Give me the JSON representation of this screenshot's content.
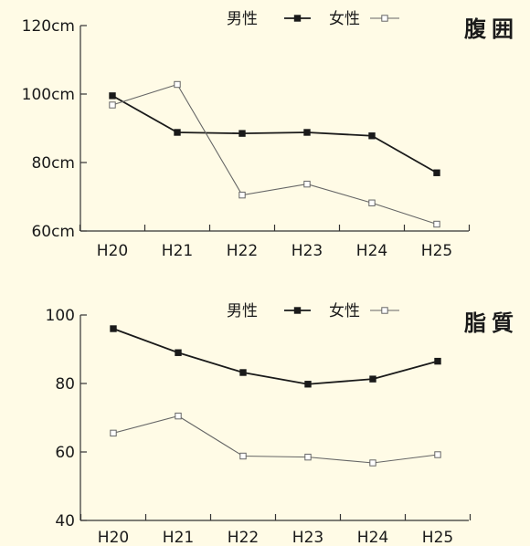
{
  "colors": {
    "background": "#fffbe6",
    "axis": "#333333",
    "male": "#1a1a1a",
    "female": "#666666"
  },
  "chart_data": [
    {
      "type": "line",
      "title": "腹囲",
      "categories": [
        "H20",
        "H21",
        "H22",
        "H23",
        "H24",
        "H25"
      ],
      "y_tick_labels": [
        "60cm",
        "80cm",
        "100cm",
        "120cm"
      ],
      "ylim": [
        60,
        120
      ],
      "y_ticks": [
        60,
        80,
        100,
        120
      ],
      "series": [
        {
          "name": "男性",
          "marker": "filled-square",
          "values": [
            99.5,
            88.8,
            88.5,
            88.8,
            87.8,
            77
          ]
        },
        {
          "name": "女性",
          "marker": "open-square",
          "values": [
            96.8,
            102.8,
            70.5,
            73.7,
            68.2,
            62
          ]
        }
      ],
      "legend": "top-center"
    },
    {
      "type": "line",
      "title": "脂質",
      "categories": [
        "H20",
        "H21",
        "H22",
        "H23",
        "H24",
        "H25"
      ],
      "y_tick_labels": [
        "40",
        "60",
        "80",
        "100"
      ],
      "ylim": [
        40,
        100
      ],
      "y_ticks": [
        40,
        60,
        80,
        100
      ],
      "series": [
        {
          "name": "男性",
          "marker": "filled-square",
          "values": [
            96,
            89,
            83.2,
            79.8,
            81.3,
            86.5
          ]
        },
        {
          "name": "女性",
          "marker": "open-square",
          "values": [
            65.5,
            70.5,
            58.8,
            58.5,
            56.8,
            59.2
          ]
        }
      ],
      "legend": "top-center"
    }
  ]
}
